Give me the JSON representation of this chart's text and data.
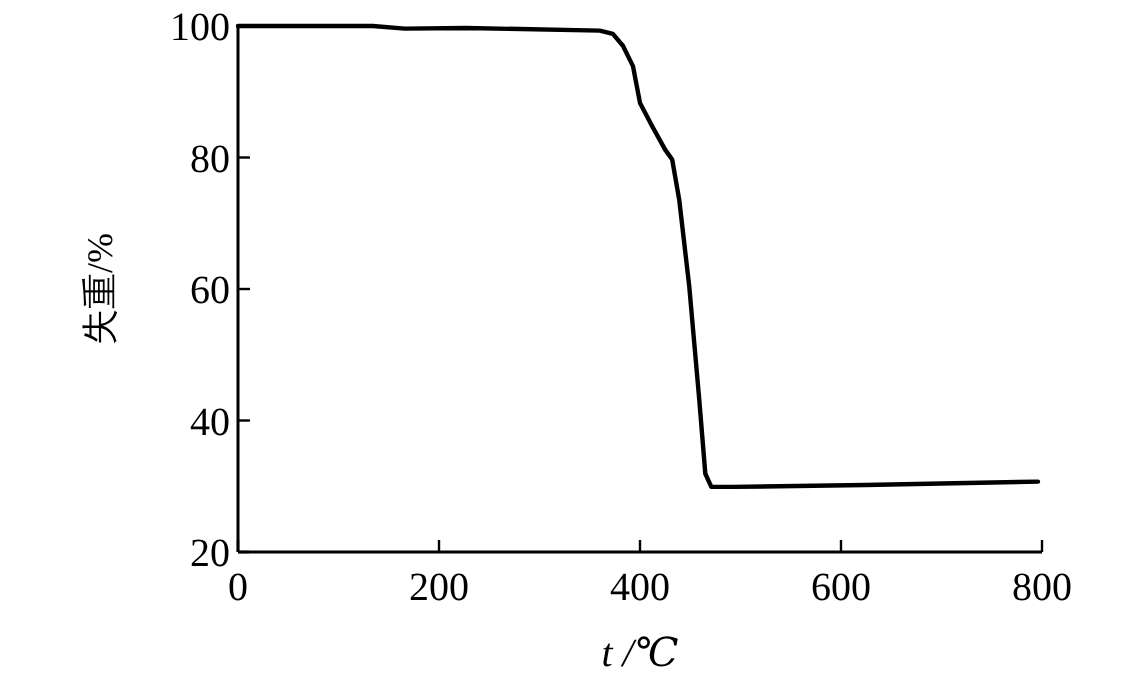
{
  "chart_data": {
    "type": "line",
    "xlabel": "t /℃",
    "ylabel": "失重/%",
    "xlim": [
      0,
      800
    ],
    "ylim": [
      20,
      100
    ],
    "xticks": [
      0,
      200,
      400,
      600,
      800
    ],
    "yticks": [
      20,
      40,
      60,
      80,
      100
    ],
    "grid": false,
    "marker": "none",
    "line_style": "solid",
    "series": [
      {
        "color": "#000000",
        "x": [
          0,
          134,
          166,
          227,
          360,
          373,
          383,
          393,
          400,
          412,
          425,
          432,
          439,
          449,
          459,
          465,
          471,
          492,
          624,
          796
        ],
        "values": [
          100,
          100,
          99.6,
          99.7,
          99.3,
          98.8,
          97,
          93.9,
          88.3,
          84.8,
          81.2,
          79.7,
          73.6,
          60.4,
          43.1,
          31.9,
          29.9,
          29.9,
          30.2,
          30.7
        ]
      }
    ]
  }
}
